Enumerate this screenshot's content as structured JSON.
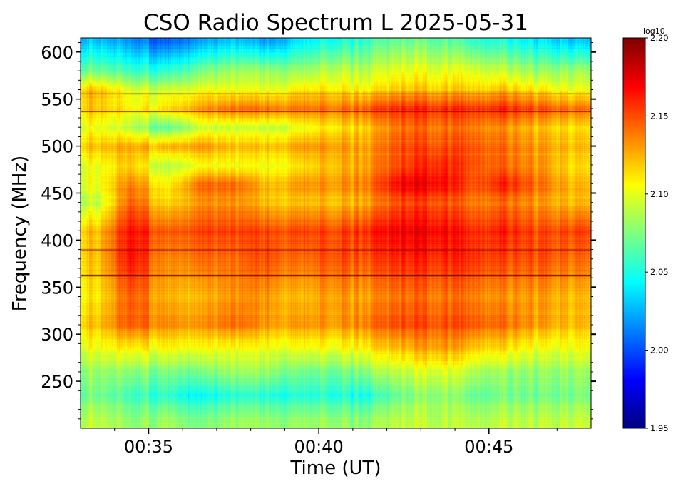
{
  "chart_data": {
    "type": "heatmap",
    "title": "CSO Radio Spectrum L 2025-05-31",
    "xlabel": "Time (UT)",
    "ylabel": "Frequency (MHz)",
    "colorbar_label": "log10",
    "colormap": "jet",
    "xlim_minutes": [
      33,
      48
    ],
    "ylim": [
      200,
      615
    ],
    "clim": [
      1.95,
      2.2
    ],
    "x_ticks": [
      {
        "value": 35,
        "label": "00:35"
      },
      {
        "value": 40,
        "label": "00:40"
      },
      {
        "value": 45,
        "label": "00:45"
      }
    ],
    "y_ticks": [
      {
        "value": 600,
        "label": "600"
      },
      {
        "value": 550,
        "label": "550"
      },
      {
        "value": 500,
        "label": "500"
      },
      {
        "value": 450,
        "label": "450"
      },
      {
        "value": 400,
        "label": "400"
      },
      {
        "value": 350,
        "label": "350"
      },
      {
        "value": 300,
        "label": "300"
      },
      {
        "value": 250,
        "label": "250"
      }
    ],
    "colorbar_ticks": [
      {
        "value": 1.95,
        "label": "1.95"
      },
      {
        "value": 2.0,
        "label": "2.00"
      },
      {
        "value": 2.05,
        "label": "2.05"
      },
      {
        "value": 2.1,
        "label": "2.10"
      },
      {
        "value": 2.15,
        "label": "2.15"
      },
      {
        "value": 2.2,
        "label": "2.20"
      }
    ],
    "time_minutes": [
      33.5,
      34.5,
      35.5,
      36.5,
      37.5,
      38.5,
      39.5,
      40.5,
      41.5,
      42.5,
      43.5,
      44.5,
      45.5,
      46.5,
      47.5
    ],
    "frequencies": [
      610,
      580,
      560,
      540,
      520,
      500,
      480,
      460,
      440,
      410,
      380,
      340,
      310,
      285,
      260,
      235,
      210
    ],
    "values": [
      [
        2.03,
        2.02,
        2.0,
        2.02,
        2.03,
        2.02,
        2.04,
        2.05,
        2.06,
        2.07,
        2.07,
        2.06,
        2.05,
        2.04,
        2.03
      ],
      [
        2.07,
        2.06,
        2.05,
        2.07,
        2.08,
        2.08,
        2.08,
        2.09,
        2.09,
        2.1,
        2.1,
        2.1,
        2.09,
        2.08,
        2.08
      ],
      [
        2.12,
        2.1,
        2.09,
        2.1,
        2.1,
        2.1,
        2.11,
        2.11,
        2.11,
        2.12,
        2.12,
        2.12,
        2.12,
        2.11,
        2.1
      ],
      [
        2.12,
        2.11,
        2.11,
        2.13,
        2.14,
        2.14,
        2.14,
        2.14,
        2.15,
        2.16,
        2.16,
        2.16,
        2.16,
        2.15,
        2.14
      ],
      [
        2.1,
        2.09,
        2.06,
        2.09,
        2.09,
        2.09,
        2.1,
        2.11,
        2.12,
        2.14,
        2.14,
        2.14,
        2.13,
        2.12,
        2.11
      ],
      [
        2.12,
        2.13,
        2.12,
        2.13,
        2.12,
        2.12,
        2.13,
        2.13,
        2.13,
        2.15,
        2.15,
        2.15,
        2.14,
        2.13,
        2.12
      ],
      [
        2.1,
        2.12,
        2.08,
        2.1,
        2.1,
        2.1,
        2.11,
        2.12,
        2.13,
        2.15,
        2.16,
        2.15,
        2.14,
        2.13,
        2.11
      ],
      [
        2.1,
        2.14,
        2.1,
        2.14,
        2.14,
        2.12,
        2.13,
        2.13,
        2.14,
        2.17,
        2.17,
        2.15,
        2.16,
        2.14,
        2.12
      ],
      [
        2.09,
        2.15,
        2.11,
        2.13,
        2.13,
        2.12,
        2.12,
        2.12,
        2.13,
        2.15,
        2.15,
        2.14,
        2.14,
        2.13,
        2.12
      ],
      [
        2.12,
        2.17,
        2.14,
        2.15,
        2.15,
        2.15,
        2.15,
        2.15,
        2.16,
        2.17,
        2.17,
        2.16,
        2.16,
        2.15,
        2.15
      ],
      [
        2.12,
        2.17,
        2.13,
        2.14,
        2.14,
        2.15,
        2.14,
        2.15,
        2.15,
        2.16,
        2.16,
        2.16,
        2.15,
        2.15,
        2.14
      ],
      [
        2.11,
        2.15,
        2.12,
        2.12,
        2.13,
        2.13,
        2.12,
        2.13,
        2.13,
        2.14,
        2.14,
        2.14,
        2.13,
        2.13,
        2.12
      ],
      [
        2.12,
        2.15,
        2.13,
        2.13,
        2.14,
        2.13,
        2.13,
        2.13,
        2.14,
        2.15,
        2.15,
        2.15,
        2.14,
        2.13,
        2.12
      ],
      [
        2.1,
        2.11,
        2.1,
        2.1,
        2.1,
        2.1,
        2.1,
        2.1,
        2.11,
        2.12,
        2.13,
        2.12,
        2.11,
        2.1,
        2.1
      ],
      [
        2.08,
        2.08,
        2.07,
        2.07,
        2.08,
        2.08,
        2.07,
        2.07,
        2.08,
        2.09,
        2.1,
        2.09,
        2.08,
        2.08,
        2.08
      ],
      [
        2.07,
        2.06,
        2.05,
        2.04,
        2.05,
        2.05,
        2.05,
        2.05,
        2.05,
        2.07,
        2.08,
        2.07,
        2.07,
        2.07,
        2.07
      ],
      [
        2.09,
        2.08,
        2.08,
        2.07,
        2.08,
        2.08,
        2.08,
        2.08,
        2.08,
        2.09,
        2.09,
        2.09,
        2.09,
        2.09,
        2.09
      ]
    ],
    "horizontal_lines_mhz": [
      363,
      390,
      537,
      556
    ]
  }
}
